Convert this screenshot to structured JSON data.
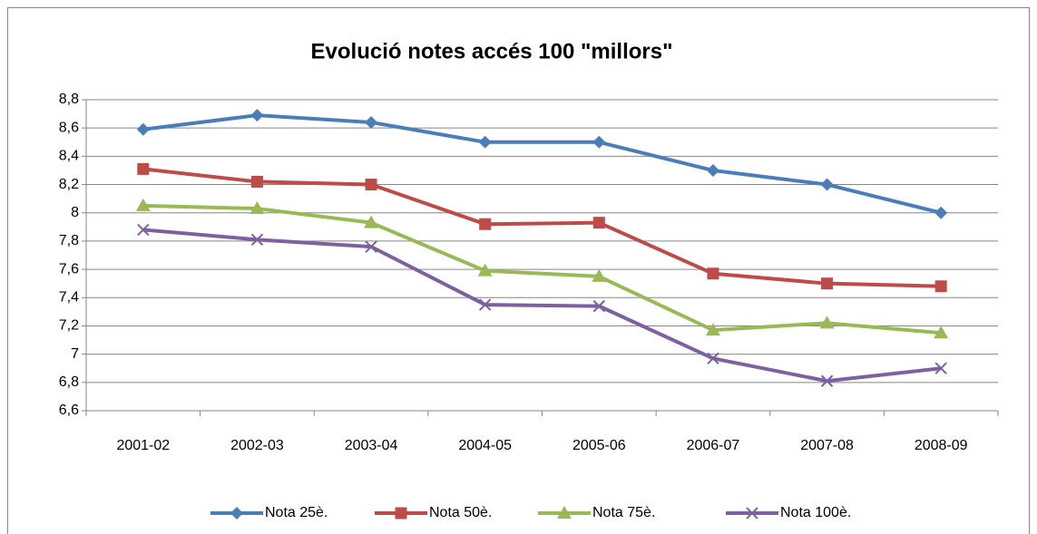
{
  "chart_data": {
    "type": "line",
    "title": "Evolució notes accés 100 \"millors\"",
    "categories": [
      "2001-02",
      "2002-03",
      "2003-04",
      "2004-05",
      "2005-06",
      "2006-07",
      "2007-08",
      "2008-09"
    ],
    "series": [
      {
        "name": "Nota 25è.",
        "color": "#4a7ebb",
        "marker": "diamond",
        "values": [
          8.59,
          8.69,
          8.64,
          8.5,
          8.5,
          8.3,
          8.2,
          8.0
        ]
      },
      {
        "name": "Nota 50è.",
        "color": "#be4b48",
        "marker": "square",
        "values": [
          8.31,
          8.22,
          8.2,
          7.92,
          7.93,
          7.57,
          7.5,
          7.48
        ]
      },
      {
        "name": "Nota 75è.",
        "color": "#98b954",
        "marker": "triangle",
        "values": [
          8.05,
          8.03,
          7.93,
          7.59,
          7.55,
          7.17,
          7.22,
          7.15
        ]
      },
      {
        "name": "Nota 100è.",
        "color": "#7d60a0",
        "marker": "x",
        "values": [
          7.88,
          7.81,
          7.76,
          7.35,
          7.34,
          6.97,
          6.81,
          6.9
        ]
      }
    ],
    "ylim": [
      6.6,
      8.8
    ],
    "yticks": [
      {
        "value": 6.6,
        "label": "6,6"
      },
      {
        "value": 6.8,
        "label": "6,8"
      },
      7,
      {
        "value": 7.2,
        "label": "7,2"
      },
      {
        "value": 7.4,
        "label": "7,4"
      },
      {
        "value": 7.6,
        "label": "7,6"
      },
      {
        "value": 7.8,
        "label": "7,8"
      },
      8,
      {
        "value": 8.2,
        "label": "8,2"
      },
      {
        "value": 8.4,
        "label": "8,4"
      },
      {
        "value": 8.6,
        "label": "8,6"
      },
      {
        "value": 8.8,
        "label": "8,8"
      }
    ],
    "grid": true,
    "legend": "bottom"
  }
}
